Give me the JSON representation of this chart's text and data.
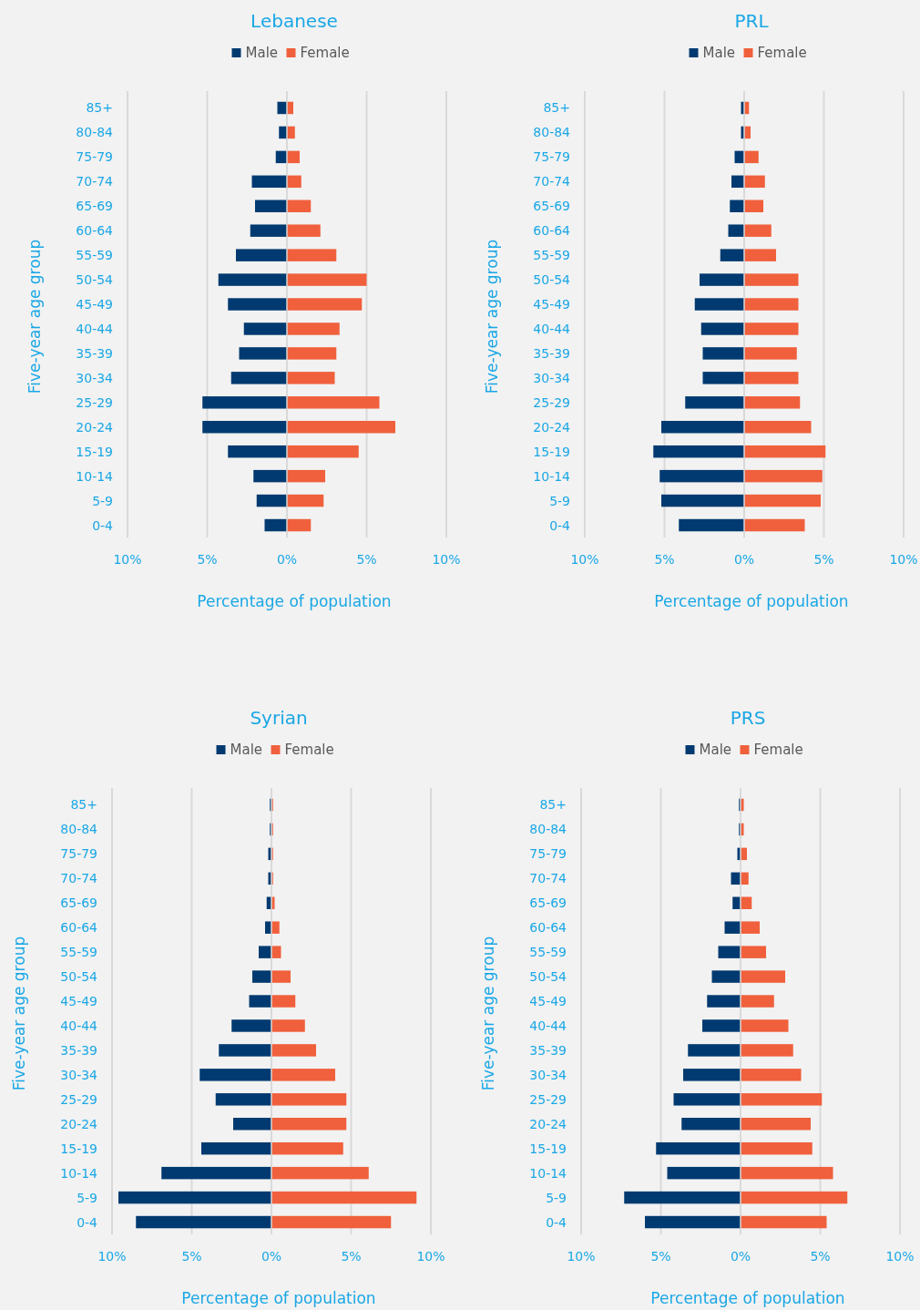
{
  "chart_data": [
    {
      "type": "bar",
      "orientation": "horizontal",
      "stacked": true,
      "title": "Lebanese",
      "xlabel": "Percentage of population",
      "ylabel": "Five-year age group",
      "legend": "top",
      "grid": "x",
      "categories": [
        "85+",
        "80-84",
        "75-79",
        "70-74",
        "65-69",
        "60-64",
        "55-59",
        "50-54",
        "45-49",
        "40-44",
        "35-39",
        "30-34",
        "25-29",
        "20-24",
        "15-19",
        "10-14",
        "5-9",
        "0-4"
      ],
      "xlim": [
        -10,
        10
      ],
      "xticks": [
        {
          "value": -10,
          "label": "10%"
        },
        {
          "value": -5,
          "label": "5%"
        },
        {
          "value": 0,
          "label": "0%"
        },
        {
          "value": 5,
          "label": "5%"
        },
        {
          "value": 10,
          "label": "10%"
        }
      ],
      "series": [
        {
          "name": "Male",
          "color": "#003a70",
          "values": [
            -0.6,
            -0.5,
            -0.7,
            -2.2,
            -2.0,
            -2.3,
            -3.2,
            -4.3,
            -3.7,
            -2.7,
            -3.0,
            -3.5,
            -5.3,
            -5.3,
            -3.7,
            -2.1,
            -1.9,
            -1.4
          ]
        },
        {
          "name": "Female",
          "color": "#f0603c",
          "values": [
            0.4,
            0.5,
            0.8,
            0.9,
            1.5,
            2.1,
            3.1,
            5.0,
            4.7,
            3.3,
            3.1,
            3.0,
            5.8,
            6.8,
            4.5,
            2.4,
            2.3,
            1.5
          ]
        }
      ]
    },
    {
      "type": "bar",
      "orientation": "horizontal",
      "stacked": true,
      "title": "PRL",
      "xlabel": "Percentage of population",
      "ylabel": "Five-year age group",
      "legend": "top",
      "grid": "x",
      "categories": [
        "85+",
        "80-84",
        "75-79",
        "70-74",
        "65-69",
        "60-64",
        "55-59",
        "50-54",
        "45-49",
        "40-44",
        "35-39",
        "30-34",
        "25-29",
        "20-24",
        "15-19",
        "10-14",
        "5-9",
        "0-4"
      ],
      "xlim": [
        -10,
        10
      ],
      "xticks": [
        {
          "value": -10,
          "label": "10%"
        },
        {
          "value": -5,
          "label": "5%"
        },
        {
          "value": 0,
          "label": "0%"
        },
        {
          "value": 5,
          "label": "5%"
        },
        {
          "value": 10,
          "label": "10%"
        }
      ],
      "series": [
        {
          "name": "Male",
          "color": "#003a70",
          "values": [
            -0.2,
            -0.2,
            -0.6,
            -0.8,
            -0.9,
            -1.0,
            -1.5,
            -2.8,
            -3.1,
            -2.7,
            -2.6,
            -2.6,
            -3.7,
            -5.2,
            -5.7,
            -5.3,
            -5.2,
            -4.1
          ]
        },
        {
          "name": "Female",
          "color": "#f0603c",
          "values": [
            0.3,
            0.4,
            0.9,
            1.3,
            1.2,
            1.7,
            2.0,
            3.4,
            3.4,
            3.4,
            3.3,
            3.4,
            3.5,
            4.2,
            5.1,
            4.9,
            4.8,
            3.8
          ]
        }
      ]
    },
    {
      "type": "bar",
      "orientation": "horizontal",
      "stacked": true,
      "title": "Syrian",
      "xlabel": "Percentage of population",
      "ylabel": "Five-year age group",
      "legend": "top",
      "grid": "x",
      "categories": [
        "85+",
        "80-84",
        "75-79",
        "70-74",
        "65-69",
        "60-64",
        "55-59",
        "50-54",
        "45-49",
        "40-44",
        "35-39",
        "30-34",
        "25-29",
        "20-24",
        "15-19",
        "10-14",
        "5-9",
        "0-4"
      ],
      "xlim": [
        -10,
        10
      ],
      "xticks": [
        {
          "value": -10,
          "label": "10%"
        },
        {
          "value": -5,
          "label": "5%"
        },
        {
          "value": 0,
          "label": "0%"
        },
        {
          "value": 5,
          "label": "5%"
        },
        {
          "value": 10,
          "label": "10%"
        }
      ],
      "series": [
        {
          "name": "Male",
          "color": "#003a70",
          "values": [
            -0.1,
            -0.1,
            -0.2,
            -0.2,
            -0.3,
            -0.4,
            -0.8,
            -1.2,
            -1.4,
            -2.5,
            -3.3,
            -4.5,
            -3.5,
            -2.4,
            -4.4,
            -6.9,
            -9.6,
            -8.5
          ]
        },
        {
          "name": "Female",
          "color": "#f0603c",
          "values": [
            0.1,
            0.1,
            0.1,
            0.1,
            0.2,
            0.5,
            0.6,
            1.2,
            1.5,
            2.1,
            2.8,
            4.0,
            4.7,
            4.7,
            4.5,
            6.1,
            9.1,
            7.5
          ]
        }
      ]
    },
    {
      "type": "bar",
      "orientation": "horizontal",
      "stacked": true,
      "title": "PRS",
      "xlabel": "Percentage of population",
      "ylabel": "Five-year age group",
      "legend": "top",
      "grid": "x",
      "categories": [
        "85+",
        "80-84",
        "75-79",
        "70-74",
        "65-69",
        "60-64",
        "55-59",
        "50-54",
        "45-49",
        "40-44",
        "35-39",
        "30-34",
        "25-29",
        "20-24",
        "15-19",
        "10-14",
        "5-9",
        "0-4"
      ],
      "xlim": [
        -10,
        10
      ],
      "xticks": [
        {
          "value": -10,
          "label": "10%"
        },
        {
          "value": -5,
          "label": "5%"
        },
        {
          "value": 0,
          "label": "0%"
        },
        {
          "value": 5,
          "label": "5%"
        },
        {
          "value": 10,
          "label": "10%"
        }
      ],
      "series": [
        {
          "name": "Male",
          "color": "#003a70",
          "values": [
            -0.1,
            -0.1,
            -0.2,
            -0.6,
            -0.5,
            -1.0,
            -1.4,
            -1.8,
            -2.1,
            -2.4,
            -3.3,
            -3.6,
            -4.2,
            -3.7,
            -5.3,
            -4.6,
            -7.3,
            -6.0
          ]
        },
        {
          "name": "Female",
          "color": "#f0603c",
          "values": [
            0.2,
            0.2,
            0.4,
            0.5,
            0.7,
            1.2,
            1.6,
            2.8,
            2.1,
            3.0,
            3.3,
            3.8,
            5.1,
            4.4,
            4.5,
            5.8,
            6.7,
            5.4
          ]
        }
      ]
    }
  ]
}
